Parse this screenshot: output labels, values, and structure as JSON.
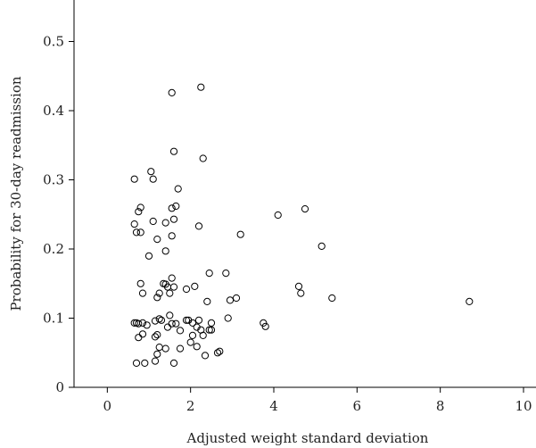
{
  "chart_data": {
    "type": "scatter",
    "title": "",
    "xlabel": "Adjusted weight standard deviation",
    "ylabel": "Probability for 30-day readmission",
    "xlim": [
      -0.8,
      10.3
    ],
    "ylim": [
      0,
      0.56
    ],
    "xticks": [
      0,
      2,
      4,
      6,
      8,
      10
    ],
    "yticks": [
      0,
      0.1,
      0.2,
      0.3,
      0.4,
      0.5
    ],
    "xtick_labels": [
      "0",
      "2",
      "4",
      "6",
      "8",
      "10"
    ],
    "ytick_labels": [
      "0",
      "0.1",
      "0.2",
      "0.3",
      "0.4",
      "0.5"
    ],
    "grid": false,
    "legend": "none",
    "marker": "open-circle",
    "color": "#000000",
    "series": [
      {
        "x": [
          1.55,
          2.25,
          1.6,
          2.3,
          1.05,
          0.65,
          1.1,
          1.7,
          0.8,
          1.4,
          1.65,
          0.65,
          1.1,
          0.75,
          0.8,
          0.7,
          2.2,
          1.55,
          1.6,
          1.55,
          1.2,
          1.0,
          1.4,
          0.8,
          1.55,
          1.4,
          4.75,
          4.1,
          3.2,
          5.15,
          2.45,
          2.85,
          1.35,
          1.45,
          1.6,
          1.25,
          1.2,
          0.85,
          1.5,
          4.6,
          4.65,
          5.4,
          3.1,
          2.95,
          8.7,
          2.4,
          1.9,
          2.1,
          2.5,
          2.2,
          3.75,
          3.8,
          2.9,
          1.9,
          2.05,
          2.15,
          1.5,
          1.3,
          0.65,
          0.7,
          0.75,
          0.85,
          0.95,
          1.15,
          1.25,
          1.55,
          1.65,
          1.95,
          2.05,
          2.25,
          2.45,
          1.2,
          1.45,
          0.85,
          0.75,
          1.15,
          1.75,
          2.0,
          2.3,
          2.5,
          1.4,
          2.15,
          2.65,
          2.7,
          2.35,
          1.2,
          1.15,
          0.7,
          0.9,
          1.6,
          1.75,
          1.25
        ],
        "y": [
          0.426,
          0.434,
          0.341,
          0.331,
          0.312,
          0.301,
          0.301,
          0.287,
          0.26,
          0.238,
          0.262,
          0.236,
          0.24,
          0.254,
          0.224,
          0.224,
          0.233,
          0.259,
          0.243,
          0.219,
          0.214,
          0.19,
          0.197,
          0.15,
          0.158,
          0.149,
          0.258,
          0.249,
          0.221,
          0.204,
          0.165,
          0.165,
          0.15,
          0.145,
          0.145,
          0.136,
          0.13,
          0.136,
          0.136,
          0.146,
          0.136,
          0.129,
          0.129,
          0.126,
          0.124,
          0.124,
          0.142,
          0.146,
          0.093,
          0.097,
          0.093,
          0.088,
          0.1,
          0.097,
          0.093,
          0.087,
          0.104,
          0.097,
          0.093,
          0.093,
          0.092,
          0.093,
          0.09,
          0.096,
          0.099,
          0.092,
          0.092,
          0.097,
          0.075,
          0.083,
          0.083,
          0.076,
          0.087,
          0.077,
          0.072,
          0.073,
          0.082,
          0.065,
          0.075,
          0.083,
          0.056,
          0.059,
          0.05,
          0.052,
          0.046,
          0.048,
          0.038,
          0.035,
          0.035,
          0.035,
          0.056,
          0.058
        ]
      }
    ]
  }
}
